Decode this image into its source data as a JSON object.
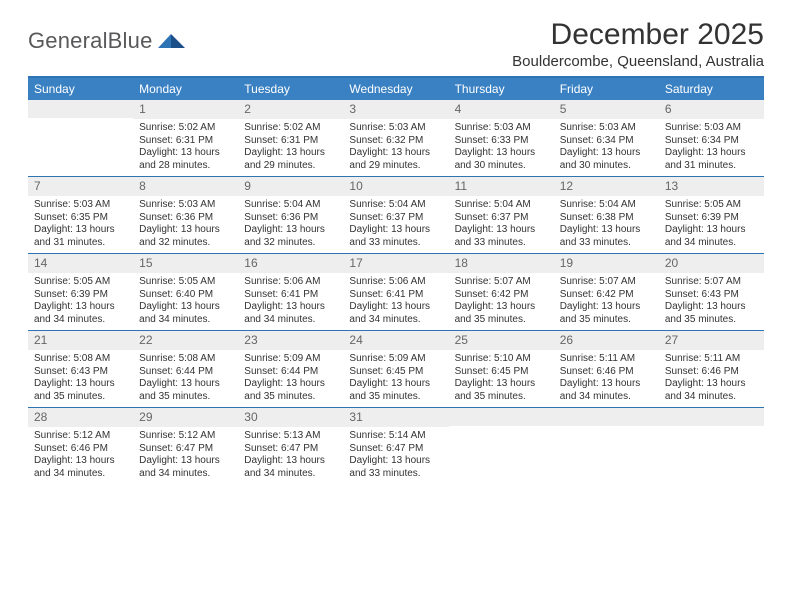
{
  "brand": {
    "name_a": "General",
    "name_b": "Blue"
  },
  "title": "December 2025",
  "location": "Bouldercombe, Queensland, Australia",
  "colors": {
    "header_bg": "#3a81c3",
    "rule": "#2e74b5",
    "daynum_bg": "#eeeeee",
    "text": "#333333",
    "muted": "#666666",
    "logo_text": "#59595b",
    "logo_mark": "#2e74b5"
  },
  "day_labels": [
    "Sunday",
    "Monday",
    "Tuesday",
    "Wednesday",
    "Thursday",
    "Friday",
    "Saturday"
  ],
  "weeks": [
    [
      {
        "n": "",
        "sr": "",
        "ss": "",
        "dl": ""
      },
      {
        "n": "1",
        "sr": "5:02 AM",
        "ss": "6:31 PM",
        "dl": "13 hours and 28 minutes."
      },
      {
        "n": "2",
        "sr": "5:02 AM",
        "ss": "6:31 PM",
        "dl": "13 hours and 29 minutes."
      },
      {
        "n": "3",
        "sr": "5:03 AM",
        "ss": "6:32 PM",
        "dl": "13 hours and 29 minutes."
      },
      {
        "n": "4",
        "sr": "5:03 AM",
        "ss": "6:33 PM",
        "dl": "13 hours and 30 minutes."
      },
      {
        "n": "5",
        "sr": "5:03 AM",
        "ss": "6:34 PM",
        "dl": "13 hours and 30 minutes."
      },
      {
        "n": "6",
        "sr": "5:03 AM",
        "ss": "6:34 PM",
        "dl": "13 hours and 31 minutes."
      }
    ],
    [
      {
        "n": "7",
        "sr": "5:03 AM",
        "ss": "6:35 PM",
        "dl": "13 hours and 31 minutes."
      },
      {
        "n": "8",
        "sr": "5:03 AM",
        "ss": "6:36 PM",
        "dl": "13 hours and 32 minutes."
      },
      {
        "n": "9",
        "sr": "5:04 AM",
        "ss": "6:36 PM",
        "dl": "13 hours and 32 minutes."
      },
      {
        "n": "10",
        "sr": "5:04 AM",
        "ss": "6:37 PM",
        "dl": "13 hours and 33 minutes."
      },
      {
        "n": "11",
        "sr": "5:04 AM",
        "ss": "6:37 PM",
        "dl": "13 hours and 33 minutes."
      },
      {
        "n": "12",
        "sr": "5:04 AM",
        "ss": "6:38 PM",
        "dl": "13 hours and 33 minutes."
      },
      {
        "n": "13",
        "sr": "5:05 AM",
        "ss": "6:39 PM",
        "dl": "13 hours and 34 minutes."
      }
    ],
    [
      {
        "n": "14",
        "sr": "5:05 AM",
        "ss": "6:39 PM",
        "dl": "13 hours and 34 minutes."
      },
      {
        "n": "15",
        "sr": "5:05 AM",
        "ss": "6:40 PM",
        "dl": "13 hours and 34 minutes."
      },
      {
        "n": "16",
        "sr": "5:06 AM",
        "ss": "6:41 PM",
        "dl": "13 hours and 34 minutes."
      },
      {
        "n": "17",
        "sr": "5:06 AM",
        "ss": "6:41 PM",
        "dl": "13 hours and 34 minutes."
      },
      {
        "n": "18",
        "sr": "5:07 AM",
        "ss": "6:42 PM",
        "dl": "13 hours and 35 minutes."
      },
      {
        "n": "19",
        "sr": "5:07 AM",
        "ss": "6:42 PM",
        "dl": "13 hours and 35 minutes."
      },
      {
        "n": "20",
        "sr": "5:07 AM",
        "ss": "6:43 PM",
        "dl": "13 hours and 35 minutes."
      }
    ],
    [
      {
        "n": "21",
        "sr": "5:08 AM",
        "ss": "6:43 PM",
        "dl": "13 hours and 35 minutes."
      },
      {
        "n": "22",
        "sr": "5:08 AM",
        "ss": "6:44 PM",
        "dl": "13 hours and 35 minutes."
      },
      {
        "n": "23",
        "sr": "5:09 AM",
        "ss": "6:44 PM",
        "dl": "13 hours and 35 minutes."
      },
      {
        "n": "24",
        "sr": "5:09 AM",
        "ss": "6:45 PM",
        "dl": "13 hours and 35 minutes."
      },
      {
        "n": "25",
        "sr": "5:10 AM",
        "ss": "6:45 PM",
        "dl": "13 hours and 35 minutes."
      },
      {
        "n": "26",
        "sr": "5:11 AM",
        "ss": "6:46 PM",
        "dl": "13 hours and 34 minutes."
      },
      {
        "n": "27",
        "sr": "5:11 AM",
        "ss": "6:46 PM",
        "dl": "13 hours and 34 minutes."
      }
    ],
    [
      {
        "n": "28",
        "sr": "5:12 AM",
        "ss": "6:46 PM",
        "dl": "13 hours and 34 minutes."
      },
      {
        "n": "29",
        "sr": "5:12 AM",
        "ss": "6:47 PM",
        "dl": "13 hours and 34 minutes."
      },
      {
        "n": "30",
        "sr": "5:13 AM",
        "ss": "6:47 PM",
        "dl": "13 hours and 34 minutes."
      },
      {
        "n": "31",
        "sr": "5:14 AM",
        "ss": "6:47 PM",
        "dl": "13 hours and 33 minutes."
      },
      {
        "n": "",
        "sr": "",
        "ss": "",
        "dl": ""
      },
      {
        "n": "",
        "sr": "",
        "ss": "",
        "dl": ""
      },
      {
        "n": "",
        "sr": "",
        "ss": "",
        "dl": ""
      }
    ]
  ],
  "labels": {
    "sunrise": "Sunrise:",
    "sunset": "Sunset:",
    "daylight": "Daylight:"
  }
}
